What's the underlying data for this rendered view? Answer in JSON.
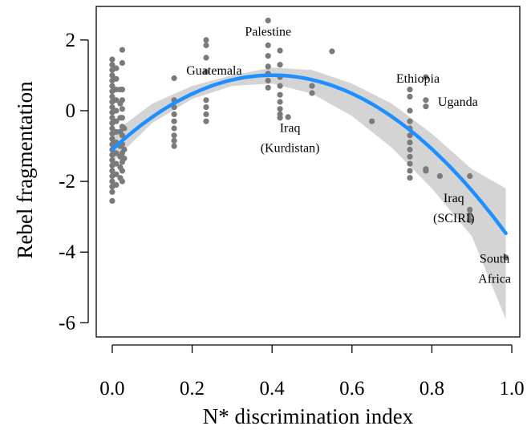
{
  "chart_data": {
    "type": "scatter",
    "title": "",
    "xlabel": "N* discrimination index",
    "ylabel": "Rebel fragmentation",
    "xlim": [
      -0.04,
      1.02
    ],
    "ylim": [
      -6.4,
      2.95
    ],
    "x_ticks": [
      0.0,
      0.2,
      0.4,
      0.6,
      0.8,
      1.0
    ],
    "x_tick_labels": [
      "0.0",
      "0.2",
      "0.4",
      "0.6",
      "0.8",
      "1.0"
    ],
    "y_ticks": [
      2,
      0,
      -2,
      -4,
      -6
    ],
    "y_tick_labels": [
      "2",
      "0",
      "-2",
      "-4",
      "-6"
    ],
    "grid": false,
    "legend": "none",
    "colors": {
      "points": "#7a7a7a",
      "fit_line": "#1e8fff",
      "confidence_band": "#d4d4d4"
    },
    "points": [
      [
        0.0,
        1.45
      ],
      [
        0.0,
        1.3
      ],
      [
        0.0,
        1.15
      ],
      [
        0.0,
        1.0
      ],
      [
        0.0,
        0.85
      ],
      [
        0.0,
        0.7
      ],
      [
        0.0,
        0.55
      ],
      [
        0.0,
        0.4
      ],
      [
        0.0,
        0.25
      ],
      [
        0.0,
        0.1
      ],
      [
        0.0,
        -0.05
      ],
      [
        0.0,
        -0.2
      ],
      [
        0.0,
        -0.35
      ],
      [
        0.0,
        -0.5
      ],
      [
        0.0,
        -0.65
      ],
      [
        0.0,
        -0.8
      ],
      [
        0.0,
        -0.95
      ],
      [
        0.0,
        -1.1
      ],
      [
        0.0,
        -1.25
      ],
      [
        0.0,
        -1.4
      ],
      [
        0.0,
        -1.55
      ],
      [
        0.0,
        -1.7
      ],
      [
        0.0,
        -1.85
      ],
      [
        0.0,
        -2.0
      ],
      [
        0.0,
        -2.15
      ],
      [
        0.0,
        -2.3
      ],
      [
        0.0,
        -2.55
      ],
      [
        0.01,
        1.2
      ],
      [
        0.01,
        0.9
      ],
      [
        0.01,
        0.6
      ],
      [
        0.01,
        0.3
      ],
      [
        0.01,
        0.0
      ],
      [
        0.01,
        -0.3
      ],
      [
        0.01,
        -0.6
      ],
      [
        0.01,
        -0.9
      ],
      [
        0.01,
        -1.2
      ],
      [
        0.01,
        -1.5
      ],
      [
        0.01,
        -1.8
      ],
      [
        0.01,
        -2.1
      ],
      [
        0.02,
        0.6
      ],
      [
        0.02,
        0.2
      ],
      [
        0.02,
        -0.2
      ],
      [
        0.02,
        -0.6
      ],
      [
        0.02,
        -1.0
      ],
      [
        0.02,
        -1.3
      ],
      [
        0.02,
        -1.6
      ],
      [
        0.02,
        -1.9
      ],
      [
        0.025,
        1.72
      ],
      [
        0.025,
        1.35
      ],
      [
        0.025,
        0.6
      ],
      [
        0.025,
        0.3
      ],
      [
        0.025,
        0.05
      ],
      [
        0.025,
        -0.2
      ],
      [
        0.025,
        -0.45
      ],
      [
        0.025,
        -0.7
      ],
      [
        0.025,
        -0.95
      ],
      [
        0.025,
        -1.2
      ],
      [
        0.025,
        -1.45
      ],
      [
        0.025,
        -1.7
      ],
      [
        0.025,
        -2.0
      ],
      [
        0.03,
        -0.5
      ],
      [
        0.03,
        -1.1
      ],
      [
        0.03,
        -1.35
      ],
      [
        0.155,
        0.92
      ],
      [
        0.155,
        0.3
      ],
      [
        0.155,
        0.1
      ],
      [
        0.155,
        -0.1
      ],
      [
        0.155,
        -0.3
      ],
      [
        0.155,
        -0.5
      ],
      [
        0.155,
        -0.7
      ],
      [
        0.155,
        -0.85
      ],
      [
        0.155,
        -1.0
      ],
      [
        0.235,
        2.0
      ],
      [
        0.235,
        1.85
      ],
      [
        0.235,
        1.5
      ],
      [
        0.235,
        1.1
      ],
      [
        0.235,
        0.3
      ],
      [
        0.235,
        0.1
      ],
      [
        0.235,
        -0.1
      ],
      [
        0.235,
        -0.3
      ],
      [
        0.39,
        2.55
      ],
      [
        0.39,
        1.85
      ],
      [
        0.39,
        1.55
      ],
      [
        0.39,
        1.25
      ],
      [
        0.39,
        1.05
      ],
      [
        0.39,
        0.85
      ],
      [
        0.39,
        0.65
      ],
      [
        0.42,
        1.7
      ],
      [
        0.42,
        1.3
      ],
      [
        0.42,
        0.95
      ],
      [
        0.42,
        0.7
      ],
      [
        0.42,
        0.45
      ],
      [
        0.42,
        0.25
      ],
      [
        0.42,
        0.05
      ],
      [
        0.42,
        -0.1
      ],
      [
        0.42,
        -0.2
      ],
      [
        0.44,
        -0.18
      ],
      [
        0.5,
        0.7
      ],
      [
        0.5,
        0.5
      ],
      [
        0.55,
        1.68
      ],
      [
        0.65,
        -0.3
      ],
      [
        0.745,
        0.6
      ],
      [
        0.745,
        0.4
      ],
      [
        0.745,
        0.0
      ],
      [
        0.745,
        -0.3
      ],
      [
        0.745,
        -0.5
      ],
      [
        0.745,
        -0.7
      ],
      [
        0.745,
        -0.9
      ],
      [
        0.745,
        -1.1
      ],
      [
        0.745,
        -1.3
      ],
      [
        0.745,
        -1.5
      ],
      [
        0.745,
        -1.7
      ],
      [
        0.745,
        -1.9
      ],
      [
        0.785,
        0.95
      ],
      [
        0.785,
        0.3
      ],
      [
        0.785,
        0.12
      ],
      [
        0.785,
        -1.65
      ],
      [
        0.785,
        -1.7
      ],
      [
        0.82,
        -1.85
      ],
      [
        0.895,
        -1.85
      ],
      [
        0.895,
        -2.8
      ],
      [
        0.895,
        -2.95
      ],
      [
        0.895,
        -3.1
      ],
      [
        0.985,
        -4.15
      ]
    ],
    "fit_curve": {
      "type": "quadratic",
      "intercept": -1.1,
      "linear": 10.5,
      "quadratic": -13.1,
      "x_range": [
        0.0,
        0.985
      ]
    },
    "confidence_band": {
      "x": [
        0.0,
        0.1,
        0.2,
        0.3,
        0.4,
        0.5,
        0.6,
        0.7,
        0.8,
        0.9,
        0.985
      ],
      "lower": [
        -1.45,
        -0.35,
        0.33,
        0.7,
        0.77,
        0.48,
        -0.15,
        -1.05,
        -2.2,
        -3.55,
        -5.9
      ],
      "upper": [
        -0.65,
        0.2,
        0.7,
        1.0,
        1.22,
        1.15,
        0.77,
        0.2,
        -0.65,
        -1.65,
        -2.2
      ]
    },
    "annotations": [
      {
        "text": "Palestine",
        "x": 0.39,
        "y": 2.2
      },
      {
        "text": "Guatemala",
        "x": 0.255,
        "y": 1.1
      },
      {
        "text": "Ethiopia",
        "x": 0.765,
        "y": 0.88
      },
      {
        "text": "Uganda",
        "x": 0.865,
        "y": 0.22
      },
      {
        "text": "Iraq",
        "x": 0.445,
        "y": -0.52
      },
      {
        "text": "(Kurdistan)",
        "x": 0.445,
        "y": -1.08
      },
      {
        "text": "Iraq",
        "x": 0.855,
        "y": -2.5
      },
      {
        "text": "(SCIRI)",
        "x": 0.855,
        "y": -3.07
      },
      {
        "text": "South",
        "x": 0.957,
        "y": -4.22
      },
      {
        "text": "Africa",
        "x": 0.957,
        "y": -4.78
      }
    ]
  }
}
